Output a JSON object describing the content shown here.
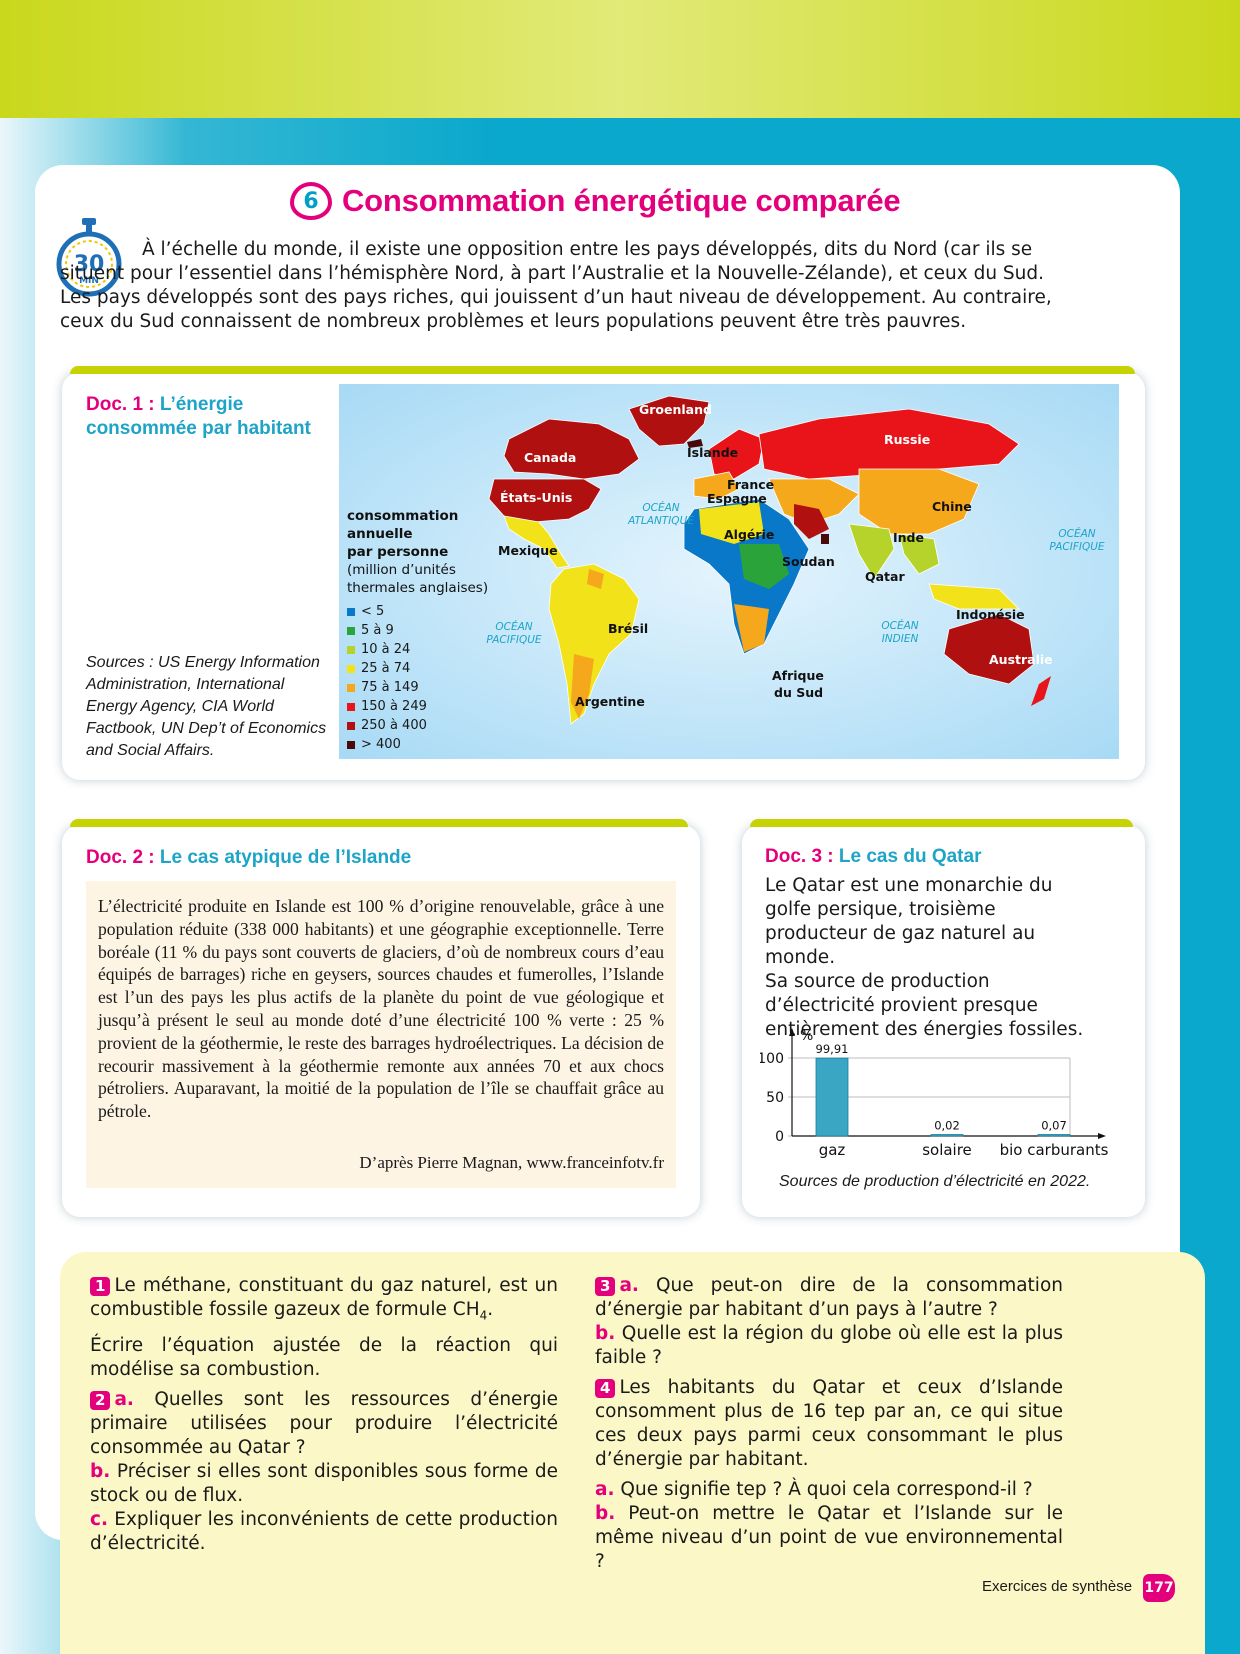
{
  "header": {
    "exercise_number": "6",
    "title": "Consommation énergétique comparée",
    "timer_value": "30",
    "timer_unit": "MIN"
  },
  "intro": {
    "text": "À l’échelle du monde, il existe une opposition entre les pays développés, dits du Nord (car ils se situent pour l’essentiel dans l’hémisphère Nord, à part l’Australie et la Nouvelle-Zélande), et ceux du Sud. Les pays développés sont des pays riches, qui jouissent d’un haut niveau de développement. Au contraire, ceux du Sud connaissent de nombreux problèmes et leurs populations peuvent être très pauvres."
  },
  "doc1": {
    "label": "Doc. 1 :",
    "title_line1": "L’énergie",
    "title_line2": "consommée par habitant",
    "legend_title_line1": "consommation",
    "legend_title_line2": "annuelle",
    "legend_title_line3": "par personne",
    "legend_sub_line1": "(million d’unités",
    "legend_sub_line2": "thermales anglaises)",
    "legend": [
      {
        "label": "< 5",
        "color": "#0a78c8"
      },
      {
        "label": "5 à 9",
        "color": "#2aa43a"
      },
      {
        "label": "10 à 24",
        "color": "#b5d32a"
      },
      {
        "label": "25 à 74",
        "color": "#f2e21a"
      },
      {
        "label": "75 à 149",
        "color": "#f5a81c"
      },
      {
        "label": "150 à 249",
        "color": "#e8141a"
      },
      {
        "label": "250 à 400",
        "color": "#b01010"
      },
      {
        "label": "> 400",
        "color": "#4a0a0a"
      }
    ],
    "sources": "Sources : US Energy Information Administration, International Energy Agency, CIA World Factbook, UN Dep’t of Economics and Social Affairs.",
    "map_labels": {
      "groenland": "Groenland",
      "canada": "Canada",
      "islande": "Islande",
      "russie": "Russie",
      "france": "France",
      "espagne": "Espagne",
      "etats_unis": "États-Unis",
      "ocean_atl_1": "OCÉAN",
      "ocean_atl_2": "ATLANTIQUE",
      "chine": "Chine",
      "algerie": "Algérie",
      "mexique": "Mexique",
      "inde": "Inde",
      "soudan": "Soudan",
      "qatar": "Qatar",
      "ocean_pac_e1": "OCÉAN",
      "ocean_pac_e2": "PACIFIQUE",
      "ocean_pac_w1": "OCÉAN",
      "ocean_pac_w2": "PACIFIQUE",
      "bresil": "Brésil",
      "indonesie": "Indonésie",
      "ocean_ind_1": "OCÉAN",
      "ocean_ind_2": "INDIEN",
      "australie": "Australie",
      "afrique_sud_1": "Afrique",
      "afrique_sud_2": "du Sud",
      "argentine": "Argentine"
    }
  },
  "doc2": {
    "label": "Doc. 2 :",
    "title": "Le cas atypique de l’Islande",
    "text": "L’électricité produite en Islande est 100 % d’origine renouvelable, grâce à une population réduite (338 000 habitants) et une géographie exceptionnelle. Terre boréale (11 % du pays sont couverts de glaciers, d’où de nombreux cours d’eau équipés de barrages) riche en geysers, sources chaudes et fumerolles, l’Islande est l’un des pays les plus actifs de la planète du point de vue géologique et jusqu’à présent le seul au monde doté d’une électricité 100 % verte : 25 % provient de la géothermie, le reste des barrages hydroélectriques. La décision de recourir massivement à la géothermie remonte aux années 70 et aux chocs pétroliers. Auparavant, la moitié de la population de l’île se chauffait grâce au pétrole.",
    "source": "D’après Pierre Magnan, www.franceinfotv.fr"
  },
  "doc3": {
    "label": "Doc. 3 :",
    "title": "Le cas du Qatar",
    "text_p1": "Le Qatar est une monarchie du golfe persique, troisième producteur de gaz naturel au monde.",
    "text_p2": "Sa source de production d’électricité provient presque entièrement des énergies fossiles.",
    "caption": "Sources de production d’électricité en 2022."
  },
  "chart_data": {
    "type": "bar",
    "categories": [
      "gaz",
      "solaire",
      "bio carburants"
    ],
    "values": [
      99.91,
      0.02,
      0.07
    ],
    "data_labels": [
      "99,91",
      "0,02",
      "0,07"
    ],
    "ylabel": "%",
    "yticks": [
      "0",
      "50",
      "100"
    ],
    "ylim": [
      0,
      100
    ],
    "grid": true,
    "color": "#3aa6c4"
  },
  "questions": {
    "q1_num": "1",
    "q1_text_a": "Le méthane, constituant du gaz naturel, est un combustible fossile gazeux de formule CH",
    "q1_sub": "4",
    "q1_text_b": ".",
    "q1_p2": "Écrire l’équation ajustée de la réaction qui modélise sa combustion.",
    "q2_num": "2",
    "q2a_letter": "a.",
    "q2a_text": "Quelles sont les ressources d’énergie primaire utilisées pour produire l’électricité consommée au Qatar ?",
    "q2b_letter": "b.",
    "q2b_text": "Préciser si elles sont disponibles sous forme de stock ou de flux.",
    "q2c_letter": "c.",
    "q2c_text": "Expliquer les inconvénients de cette production d’électricité.",
    "q3_num": "3",
    "q3a_letter": "a.",
    "q3a_text": "Que peut-on dire de la consommation d’énergie par habitant d’un pays à l’autre ?",
    "q3b_letter": "b.",
    "q3b_text": "Quelle est la région du globe où elle est la plus faible ?",
    "q4_num": "4",
    "q4_text": "Les habitants du Qatar et ceux d’Islande consomment plus de 16 tep par an, ce qui situe ces deux pays parmi ceux consommant le plus d’énergie par habitant.",
    "q4a_letter": "a.",
    "q4a_text": "Que signifie tep ? À quoi cela correspond-il ?",
    "q4b_letter": "b.",
    "q4b_text": "Peut-on mettre le Qatar et l’Islande sur le même niveau d’un point de vue environnemental ?"
  },
  "footer": {
    "label": "Exercices de synthèse",
    "page": "177"
  }
}
